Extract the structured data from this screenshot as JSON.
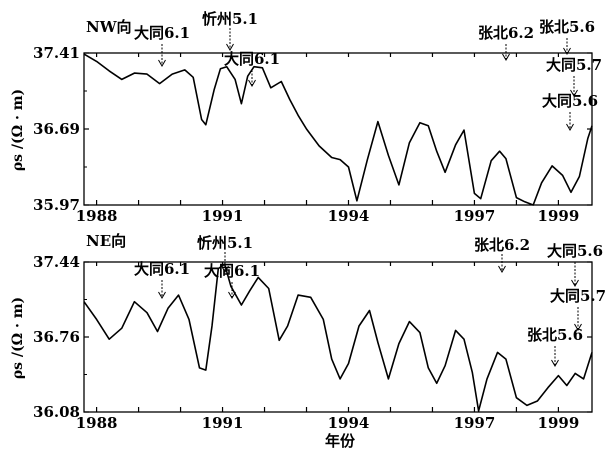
{
  "chart_data": [
    {
      "type": "line",
      "panel_label": "NW向",
      "ylabel": "ρs /(Ω · m)",
      "xlabel": "",
      "ylim": [
        35.97,
        37.41
      ],
      "xlim": [
        1987.7,
        1999.8
      ],
      "y_ticks": [
        35.97,
        36.69,
        37.41
      ],
      "y_tick_labels": [
        "35.97",
        "36.69",
        "37.41"
      ],
      "x_ticks": [
        1988,
        1991,
        1994,
        1997,
        1999
      ],
      "x_tick_labels": [
        "1988",
        "1991",
        "1994",
        "1997",
        "1999"
      ],
      "grid": false,
      "series": [
        {
          "x": [
            1987.7,
            1988.0,
            1988.3,
            1988.6,
            1988.9,
            1989.2,
            1989.5,
            1989.8,
            1990.1,
            1990.3,
            1990.5,
            1990.6,
            1990.8,
            1990.95,
            1991.1,
            1991.3,
            1991.45,
            1991.6,
            1991.75,
            1991.95,
            1992.15,
            1992.4,
            1992.6,
            1992.8,
            1993.0,
            1993.3,
            1993.6,
            1993.8,
            1994.0,
            1994.2,
            1994.45,
            1994.7,
            1994.95,
            1995.2,
            1995.45,
            1995.7,
            1995.9,
            1996.1,
            1996.3,
            1996.55,
            1996.75,
            1997.0,
            1997.15,
            1997.4,
            1997.6,
            1997.75,
            1998.0,
            1998.2,
            1998.4,
            1998.6,
            1998.85,
            1999.1,
            1999.3,
            1999.5,
            1999.7,
            1999.8
          ],
          "values": [
            37.4,
            37.33,
            37.24,
            37.16,
            37.22,
            37.21,
            37.12,
            37.21,
            37.25,
            37.18,
            36.78,
            36.73,
            37.06,
            37.26,
            37.28,
            37.16,
            36.93,
            37.19,
            37.28,
            37.27,
            37.08,
            37.14,
            36.97,
            36.82,
            36.69,
            36.53,
            36.42,
            36.4,
            36.33,
            36.01,
            36.4,
            36.76,
            36.44,
            36.16,
            36.56,
            36.75,
            36.72,
            36.48,
            36.28,
            36.54,
            36.68,
            36.08,
            36.03,
            36.39,
            36.48,
            36.41,
            36.04,
            36.0,
            35.97,
            36.18,
            36.34,
            36.25,
            36.09,
            36.24,
            36.6,
            36.72
          ]
        }
      ],
      "annotations": [
        {
          "text": "大同6.1",
          "x": 1989.5
        },
        {
          "text": "忻州5.1",
          "x": 1991.0
        },
        {
          "text": "大同6.1",
          "x": 1991.2
        },
        {
          "text": "张北6.2",
          "x": 1997.7
        },
        {
          "text": "张北5.6",
          "x": 1998.6
        },
        {
          "text": "大同5.7",
          "x": 1999.5
        },
        {
          "text": "大同5.6",
          "x": 1999.6
        }
      ]
    },
    {
      "type": "line",
      "panel_label": "NE向",
      "ylabel": "ρs /(Ω · m)",
      "xlabel": "年份",
      "ylim": [
        36.08,
        37.44
      ],
      "xlim": [
        1987.7,
        1999.8
      ],
      "y_ticks": [
        36.08,
        36.76,
        37.44
      ],
      "y_tick_labels": [
        "36.08",
        "36.76",
        "37.44"
      ],
      "x_ticks": [
        1988,
        1991,
        1994,
        1997,
        1999
      ],
      "x_tick_labels": [
        "1988",
        "1991",
        "1994",
        "1997",
        "1999"
      ],
      "grid": false,
      "series": [
        {
          "x": [
            1987.7,
            1988.0,
            1988.3,
            1988.6,
            1988.9,
            1989.2,
            1989.45,
            1989.7,
            1989.95,
            1990.2,
            1990.45,
            1990.6,
            1990.75,
            1990.9,
            1991.05,
            1991.2,
            1991.45,
            1991.65,
            1991.85,
            1992.1,
            1992.35,
            1992.55,
            1992.8,
            1993.1,
            1993.4,
            1993.6,
            1993.8,
            1994.0,
            1994.25,
            1994.5,
            1994.7,
            1994.95,
            1995.2,
            1995.45,
            1995.7,
            1995.9,
            1996.1,
            1996.3,
            1996.55,
            1996.75,
            1996.95,
            1997.1,
            1997.3,
            1997.55,
            1997.75,
            1998.0,
            1998.25,
            1998.5,
            1998.75,
            1999.0,
            1999.2,
            1999.4,
            1999.6,
            1999.8
          ],
          "values": [
            37.08,
            36.92,
            36.74,
            36.84,
            37.08,
            36.98,
            36.81,
            37.02,
            37.14,
            36.92,
            36.48,
            36.46,
            36.86,
            37.38,
            37.42,
            37.22,
            37.05,
            37.18,
            37.3,
            37.2,
            36.73,
            36.86,
            37.14,
            37.12,
            36.92,
            36.56,
            36.38,
            36.52,
            36.86,
            37.0,
            36.71,
            36.38,
            36.7,
            36.9,
            36.8,
            36.48,
            36.34,
            36.5,
            36.82,
            36.74,
            36.44,
            36.09,
            36.38,
            36.62,
            36.56,
            36.21,
            36.14,
            36.18,
            36.3,
            36.41,
            36.32,
            36.43,
            36.38,
            36.62
          ]
        }
      ],
      "annotations": [
        {
          "text": "大同6.1",
          "x": 1989.5
        },
        {
          "text": "忻州5.1",
          "x": 1990.9
        },
        {
          "text": "大同6.1",
          "x": 1991.0
        },
        {
          "text": "张北6.2",
          "x": 1997.7
        },
        {
          "text": "大同5.6",
          "x": 1999.6
        },
        {
          "text": "大同5.7",
          "x": 1999.5
        },
        {
          "text": "张北5.6",
          "x": 1998.6
        }
      ]
    }
  ]
}
